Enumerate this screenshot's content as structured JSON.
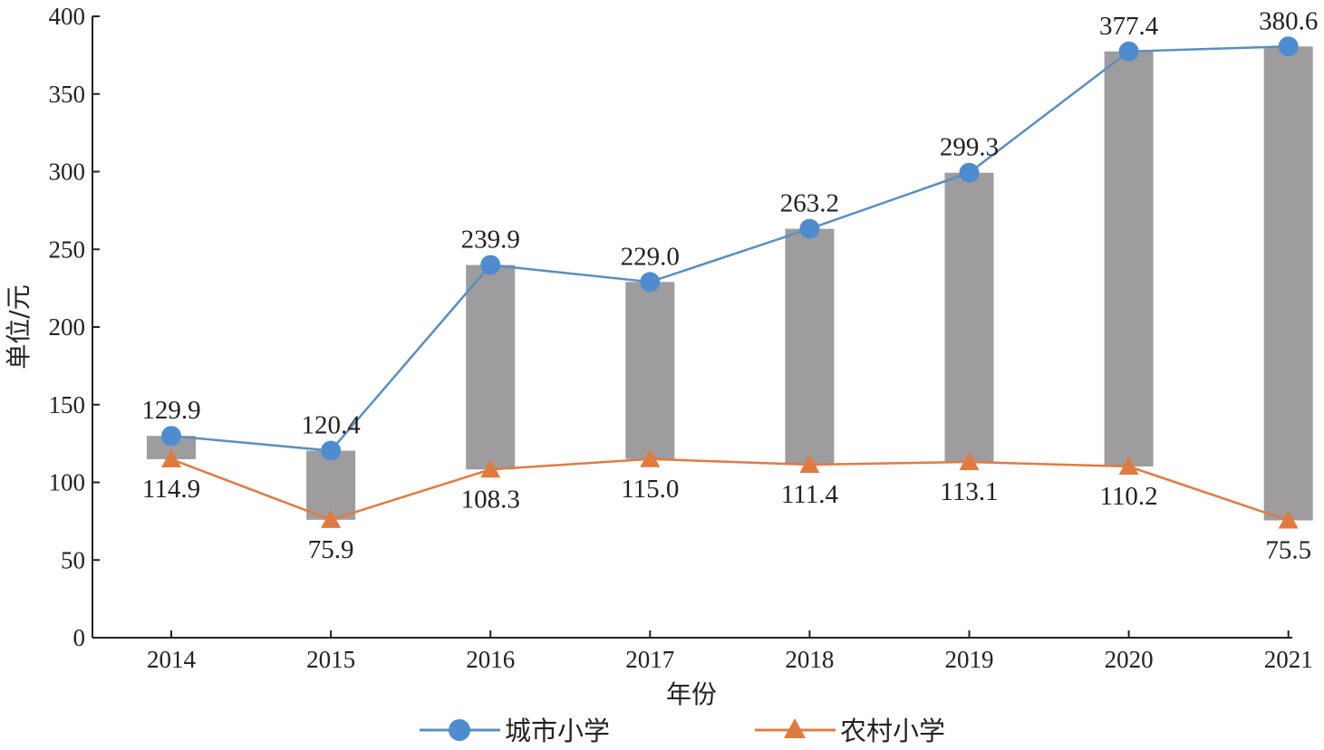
{
  "chart_data": {
    "type": "line",
    "categories": [
      "2014",
      "2015",
      "2016",
      "2017",
      "2018",
      "2019",
      "2020",
      "2021"
    ],
    "series": [
      {
        "name": "城市小学",
        "values": [
          129.9,
          120.4,
          239.9,
          229.0,
          263.2,
          299.3,
          377.4,
          380.6
        ],
        "labels": [
          "129.9",
          "120.4",
          "239.9",
          "229.0",
          "263.2",
          "299.3",
          "377.4",
          "380.6"
        ],
        "color": "#5a8fc0",
        "marker_color": "#4e8ccf",
        "marker": "circle"
      },
      {
        "name": "农村小学",
        "values": [
          114.9,
          75.9,
          108.3,
          115.0,
          111.4,
          113.1,
          110.2,
          75.5
        ],
        "labels": [
          "114.9",
          "75.9",
          "108.3",
          "115.0",
          "111.4",
          "113.1",
          "110.2",
          "75.5"
        ],
        "color": "#e07b45",
        "marker_color": "#e17a3e",
        "marker": "triangle"
      }
    ],
    "gap_bars": {
      "color": "#9e9c9e",
      "description": "difference between the two series"
    },
    "xlabel": "年份",
    "ylabel": "单位/元",
    "ylim": [
      0,
      400
    ],
    "yticks": [
      "0",
      "50",
      "100",
      "150",
      "200",
      "250",
      "300",
      "350",
      "400"
    ],
    "legend_position": "bottom",
    "grid": false
  }
}
